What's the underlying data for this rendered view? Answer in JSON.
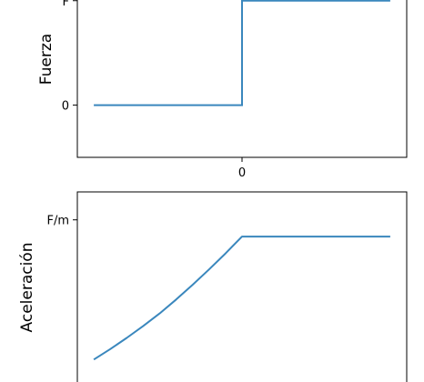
{
  "colors": {
    "line": "#3a87bd",
    "frame": "#000000"
  },
  "chart_data": [
    {
      "type": "line",
      "ylabel": "Fuerza",
      "xlabel": "",
      "grid": false,
      "xlim": [
        -1,
        1
      ],
      "ylim": [
        -0.5,
        1.05
      ],
      "x_ticks": [
        {
          "value": 0,
          "label": "0"
        }
      ],
      "y_ticks": [
        {
          "value": 0,
          "label": "0"
        },
        {
          "value": 1,
          "label": "F"
        }
      ],
      "series": [
        {
          "x": [
            -0.9,
            0,
            0,
            0.9
          ],
          "y": [
            0,
            0,
            1,
            1
          ]
        }
      ]
    },
    {
      "type": "line",
      "ylabel": "Aceleración",
      "xlabel": "",
      "grid": false,
      "xlim": [
        -1,
        1
      ],
      "ylim": [
        -0.2,
        1.2
      ],
      "x_ticks": [],
      "y_ticks": [
        {
          "value": 1,
          "label": "F/m"
        }
      ],
      "series": [
        {
          "x": [
            -0.9,
            -0.8,
            -0.7,
            -0.6,
            -0.5,
            -0.4,
            -0.3,
            -0.2,
            -0.1,
            0,
            0.9
          ],
          "y": [
            0,
            0.075,
            0.155,
            0.24,
            0.33,
            0.43,
            0.535,
            0.645,
            0.76,
            0.88,
            0.88
          ]
        }
      ]
    }
  ]
}
